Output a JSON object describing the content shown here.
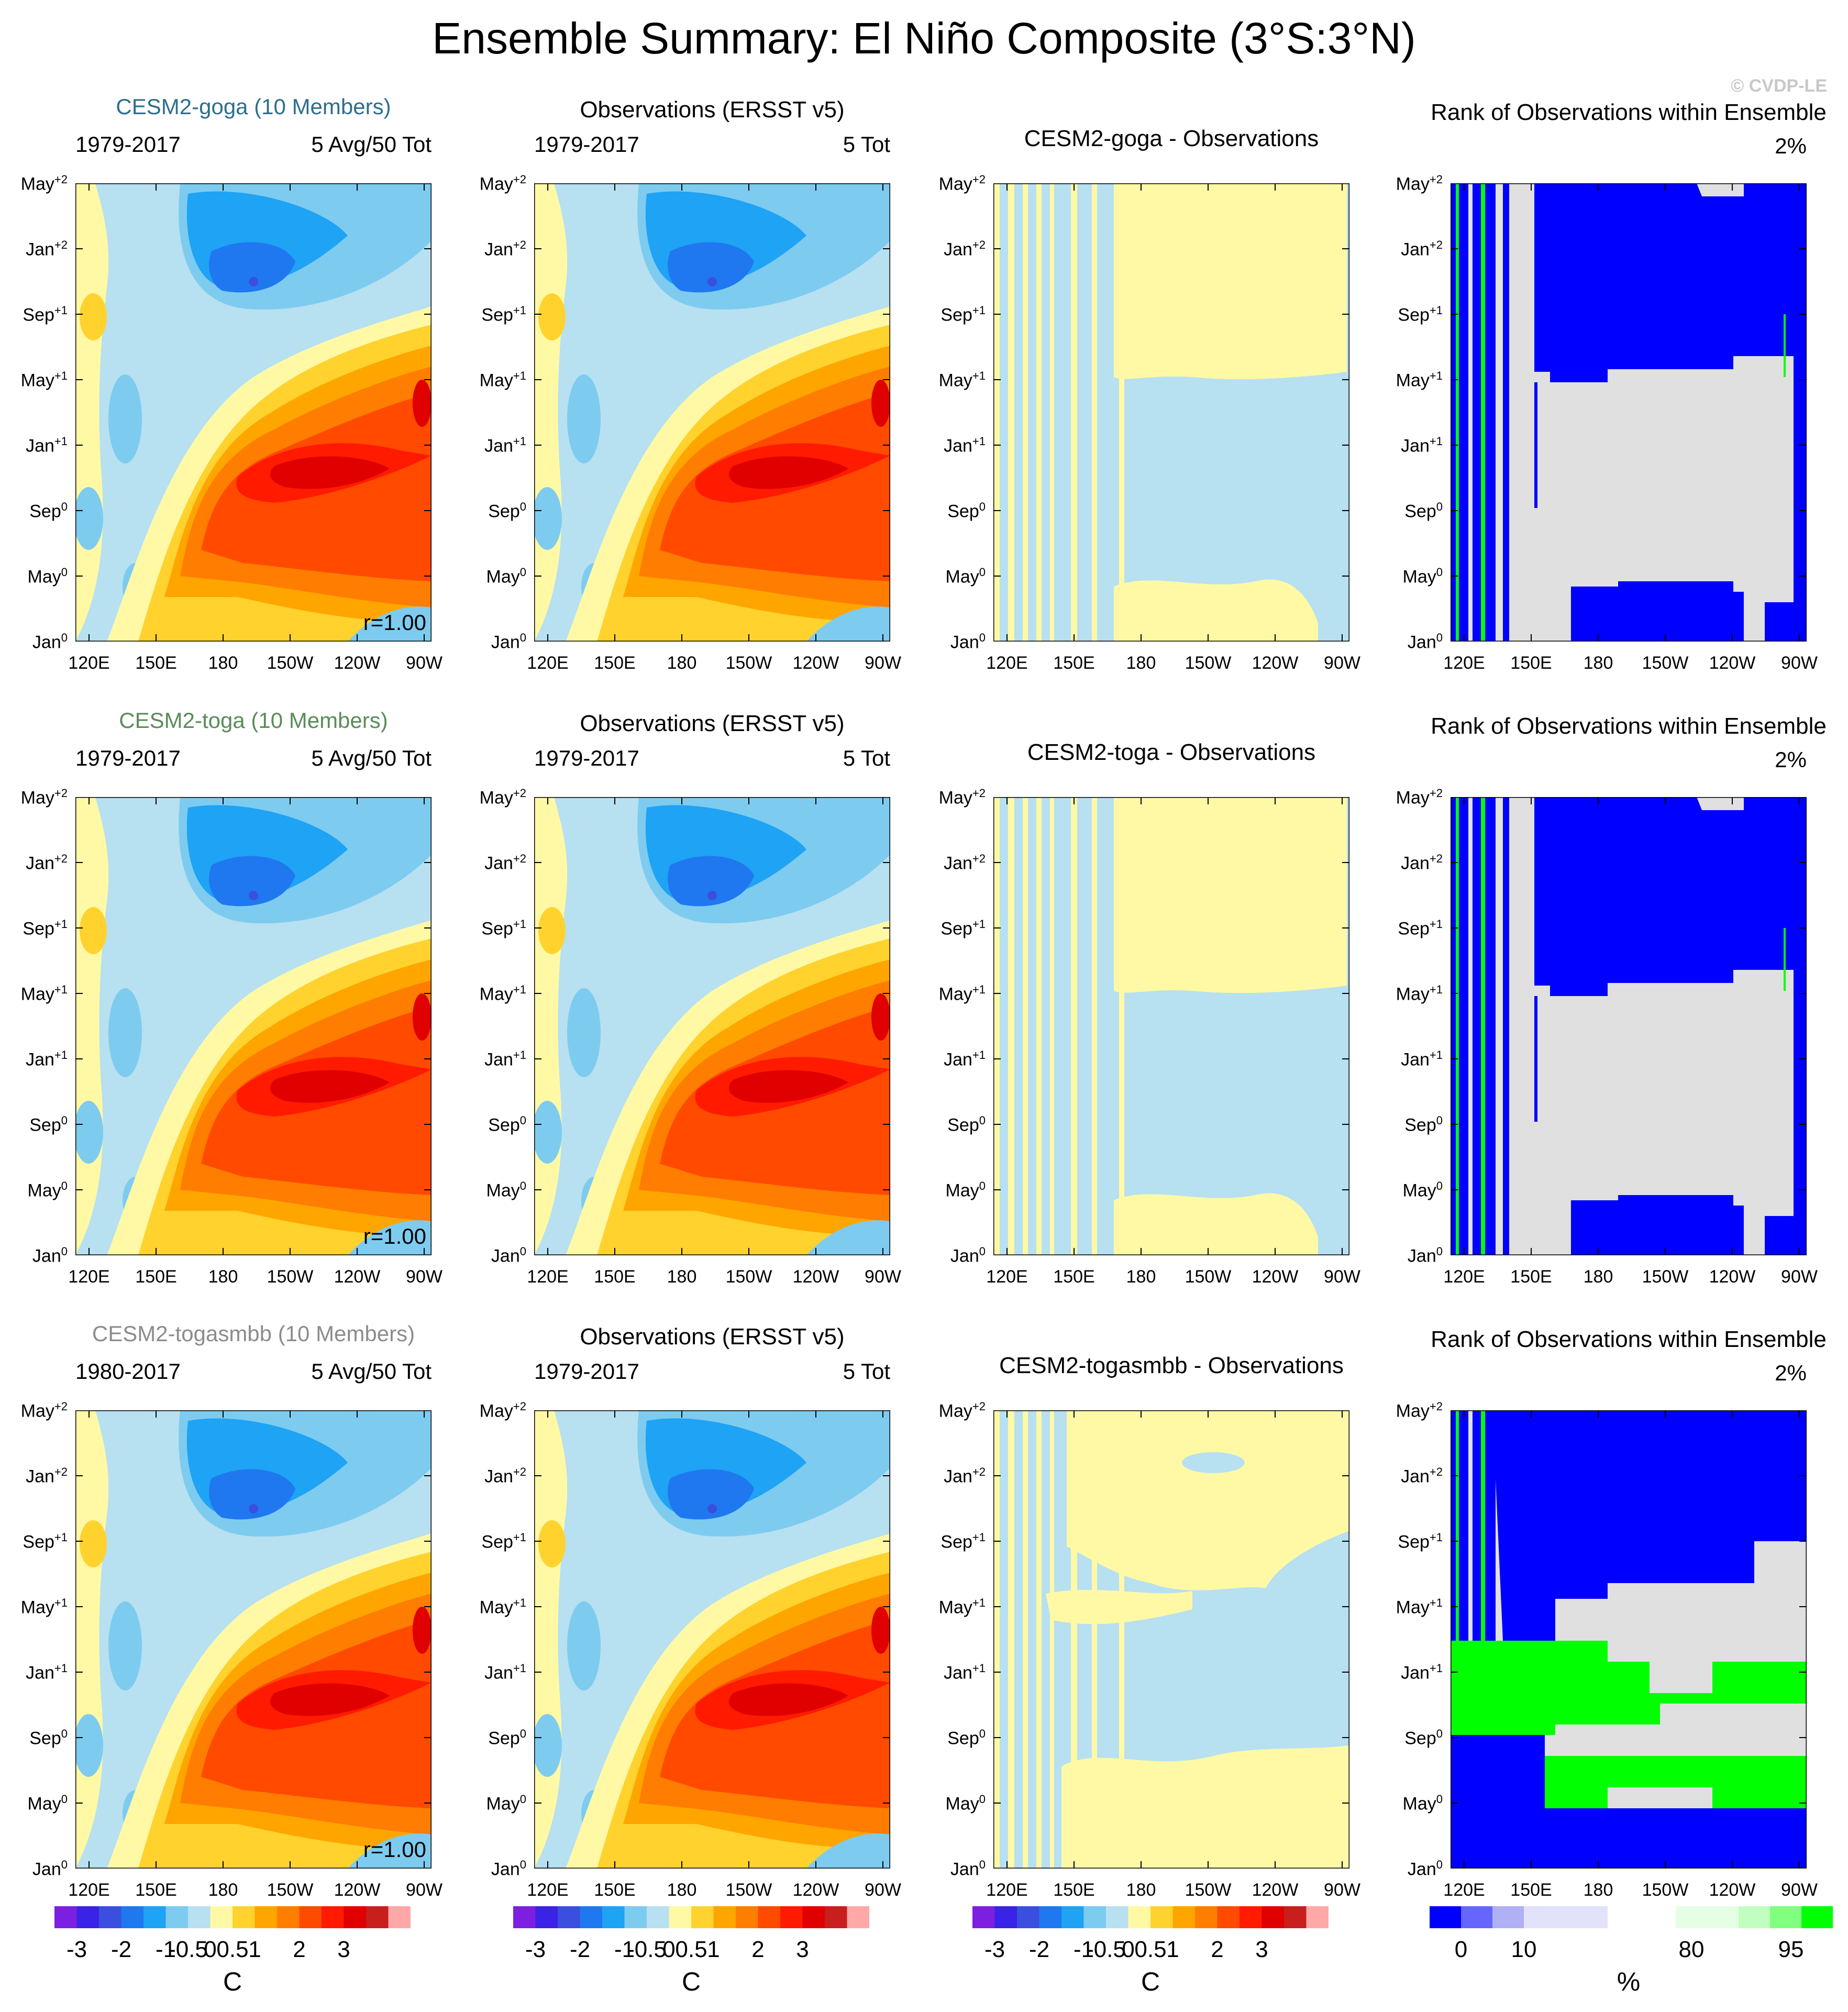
{
  "title": "Ensemble Summary: El Niño Composite (3°S:3°N)",
  "watermark": "© CVDP-LE",
  "x_ticks": [
    "120E",
    "150E",
    "180",
    "150W",
    "120W",
    "90W"
  ],
  "y_ticks": [
    {
      "month": "Jan",
      "year": "0"
    },
    {
      "month": "May",
      "year": "0"
    },
    {
      "month": "Sep",
      "year": "0"
    },
    {
      "month": "Jan",
      "year": "+1"
    },
    {
      "month": "May",
      "year": "+1"
    },
    {
      "month": "Sep",
      "year": "+1"
    },
    {
      "month": "Jan",
      "year": "+2"
    },
    {
      "month": "May",
      "year": "+2"
    }
  ],
  "colors": {
    "sst_levels": [
      "#7d1fe0",
      "#3a22e6",
      "#3a4fe0",
      "#1f78f0",
      "#1ea3f5",
      "#7ecbf0",
      "#b7e0f0",
      "#fff9a6",
      "#ffd22e",
      "#ffa500",
      "#ff7d00",
      "#ff4a00",
      "#ff1a00",
      "#e00000",
      "#c81e1e",
      "#ffa8a8"
    ],
    "rank_levels": [
      "#0000ff",
      "#6666ff",
      "#b0b0f5",
      "#e2e2fa",
      "#ffffff",
      "#e5ffe5",
      "#c0ffc0",
      "#80ff80",
      "#00ff00"
    ],
    "gray": "#e0e0e0",
    "model_names": [
      "#2d6e8c",
      "#5a8c5a",
      "#8c8c8c"
    ]
  },
  "rows": [
    {
      "model": "CESM2-goga (10 Members)",
      "model_years": "1979-2017",
      "model_count": "5 Avg/50 Tot",
      "correlation": "r=1.00",
      "obs_title": "Observations (ERSST v5)",
      "obs_years": "1979-2017",
      "obs_count": "5 Tot",
      "diff_title": "CESM2-goga - Observations",
      "rank_title": "Rank of Observations within Ensemble",
      "rank_pct": "2%"
    },
    {
      "model": "CESM2-toga (10 Members)",
      "model_years": "1979-2017",
      "model_count": "5 Avg/50 Tot",
      "correlation": "r=1.00",
      "obs_title": "Observations (ERSST v5)",
      "obs_years": "1979-2017",
      "obs_count": "5 Tot",
      "diff_title": "CESM2-toga - Observations",
      "rank_title": "Rank of Observations within Ensemble",
      "rank_pct": "2%"
    },
    {
      "model": "CESM2-togasmbb (10 Members)",
      "model_years": "1980-2017",
      "model_count": "5 Avg/50 Tot",
      "correlation": "r=1.00",
      "obs_title": "Observations (ERSST v5)",
      "obs_years": "1979-2017",
      "obs_count": "5 Tot",
      "diff_title": "CESM2-togasmbb - Observations",
      "rank_title": "Rank of Observations within Ensemble",
      "rank_pct": "2%"
    }
  ],
  "colorbars": {
    "sst": {
      "labels": [
        "-3",
        "-2",
        "-1",
        "-0.5",
        "0",
        "0.5",
        "1",
        "2",
        "3"
      ],
      "unit": "C"
    },
    "rank": {
      "labels": [
        "0",
        "10",
        "80",
        "95"
      ],
      "unit": "%"
    }
  },
  "chart_data": {
    "type": "heatmap",
    "title": "Ensemble Summary: El Niño Composite (3°S:3°N)",
    "xlabel": "",
    "ylabel": "",
    "x_axis": {
      "ticks": [
        "120E",
        "150E",
        "180",
        "150W",
        "120W",
        "90W"
      ],
      "range": [
        "115E",
        "80W"
      ]
    },
    "y_axis": {
      "ticks": [
        "Jan0",
        "May0",
        "Sep0",
        "Jan+1",
        "May+1",
        "Sep+1",
        "Jan+2",
        "May+2"
      ],
      "range": [
        "Jan0",
        "May+2"
      ]
    },
    "sst_contour_levels": [
      -3,
      -2.5,
      -2,
      -1.5,
      -1,
      -0.5,
      -0.25,
      0,
      0.25,
      0.5,
      1,
      1.5,
      2,
      2.5,
      3
    ],
    "rank_contour_levels": [
      0,
      5,
      10,
      20,
      80,
      90,
      95,
      98,
      100
    ],
    "features": {
      "warm_peak_C": 3,
      "warm_peak_time": "Nov0-Jan+1",
      "warm_peak_lon": "120W-150W",
      "cold_min_C": -2,
      "cold_min_time": "Oct+1-Jan+2",
      "cold_min_lon": "160E-170W"
    }
  }
}
